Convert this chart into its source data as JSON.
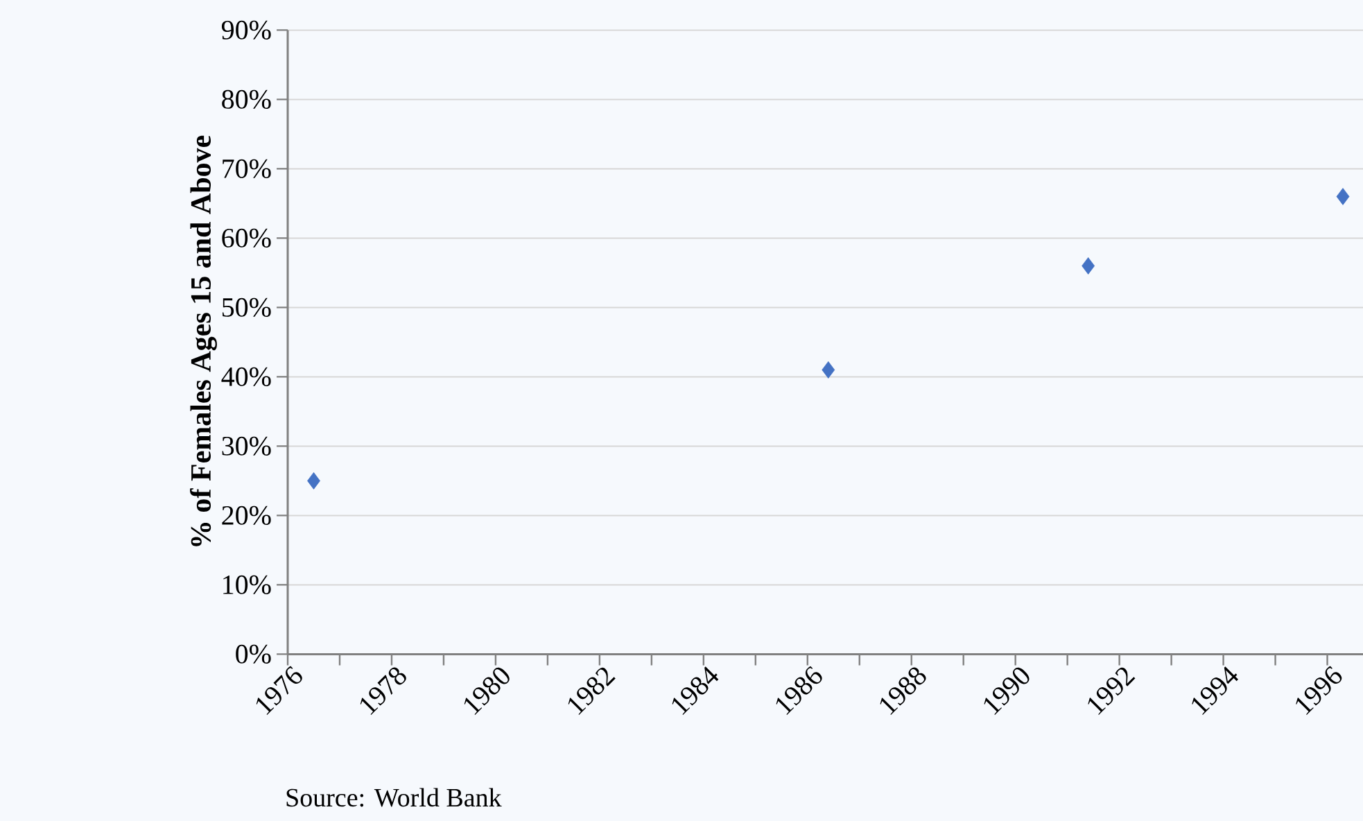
{
  "chart_data": {
    "type": "scatter",
    "ylabel": "% of Females Ages 15 and Above",
    "annotations": [
      "Source:  World Bank"
    ],
    "x": [
      1976.5,
      1986.4,
      1991.4,
      1996.3
    ],
    "values": [
      25,
      41,
      56,
      66
    ],
    "color": "#4472c4",
    "marker": "diamond",
    "grid": "y",
    "xlim": [
      1976,
      1996.7
    ],
    "xticks": [
      1976,
      {
        "value": 1977,
        "label": null
      },
      1978,
      {
        "value": 1979,
        "label": null
      },
      1980,
      {
        "value": 1981,
        "label": null
      },
      1982,
      {
        "value": 1983,
        "label": null
      },
      1984,
      {
        "value": 1985,
        "label": null
      },
      1986,
      {
        "value": 1987,
        "label": null
      },
      1988,
      {
        "value": 1989,
        "label": null
      },
      1990,
      {
        "value": 1991,
        "label": null
      },
      1992,
      {
        "value": 1993,
        "label": null
      },
      1994,
      {
        "value": 1995,
        "label": null
      },
      1996
    ],
    "ylim": [
      0,
      90
    ],
    "yticks": [
      {
        "value": 0,
        "label": "0%"
      },
      {
        "value": 10,
        "label": "10%"
      },
      {
        "value": 20,
        "label": "20%"
      },
      {
        "value": 30,
        "label": "30%"
      },
      {
        "value": 40,
        "label": "40%"
      },
      {
        "value": 50,
        "label": "50%"
      },
      {
        "value": 60,
        "label": "60%"
      },
      {
        "value": 70,
        "label": "70%"
      },
      {
        "value": 80,
        "label": "80%"
      },
      {
        "value": 90,
        "label": "90%"
      }
    ]
  }
}
